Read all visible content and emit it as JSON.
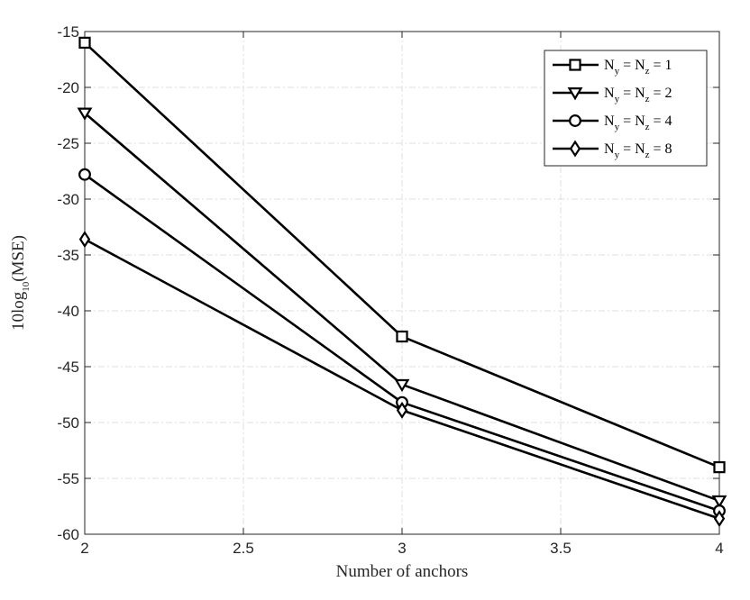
{
  "chart_data": {
    "type": "line",
    "xlabel": "Number of anchors",
    "ylabel": {
      "prefix": "10log",
      "subscript": "10",
      "suffix": "(MSE)"
    },
    "xlim": [
      2,
      4
    ],
    "ylim": [
      -60,
      -15
    ],
    "xticks": [
      2,
      2.5,
      3,
      3.5,
      4
    ],
    "xtick_labels": [
      "2",
      "2.5",
      "3",
      "3.5",
      "4"
    ],
    "yticks": [
      -60,
      -55,
      -50,
      -45,
      -40,
      -35,
      -30,
      -25,
      -20,
      -15
    ],
    "ytick_labels": [
      "-60",
      "-55",
      "-50",
      "-45",
      "-40",
      "-35",
      "-30",
      "-25",
      "-20",
      "-15"
    ],
    "grid": true,
    "legend_position": "top-right",
    "x": [
      2,
      3,
      4
    ],
    "series": [
      {
        "name": "N_y = N_z = 1",
        "legend": {
          "a": "N",
          "asub": "y",
          "mid": " = N",
          "bsub": "z",
          "tail": " = 1"
        },
        "marker": "square",
        "values": [
          -16.0,
          -42.3,
          -54.0
        ]
      },
      {
        "name": "N_y = N_z = 2",
        "legend": {
          "a": "N",
          "asub": "y",
          "mid": " = N",
          "bsub": "z",
          "tail": " = 2"
        },
        "marker": "triangle",
        "values": [
          -22.3,
          -46.6,
          -57.0
        ]
      },
      {
        "name": "N_y = N_z = 4",
        "legend": {
          "a": "N",
          "asub": "y",
          "mid": " = N",
          "bsub": "z",
          "tail": " = 4"
        },
        "marker": "circle",
        "values": [
          -27.8,
          -48.2,
          -57.9
        ]
      },
      {
        "name": "N_y = N_z = 8",
        "legend": {
          "a": "N",
          "asub": "y",
          "mid": " = N",
          "bsub": "z",
          "tail": " = 8"
        },
        "marker": "diamond",
        "values": [
          -33.6,
          -48.9,
          -58.6
        ]
      }
    ],
    "colors": {
      "line": "#000000",
      "grid": "#dfdfdf",
      "axis": "#262626",
      "background": "#ffffff"
    }
  }
}
